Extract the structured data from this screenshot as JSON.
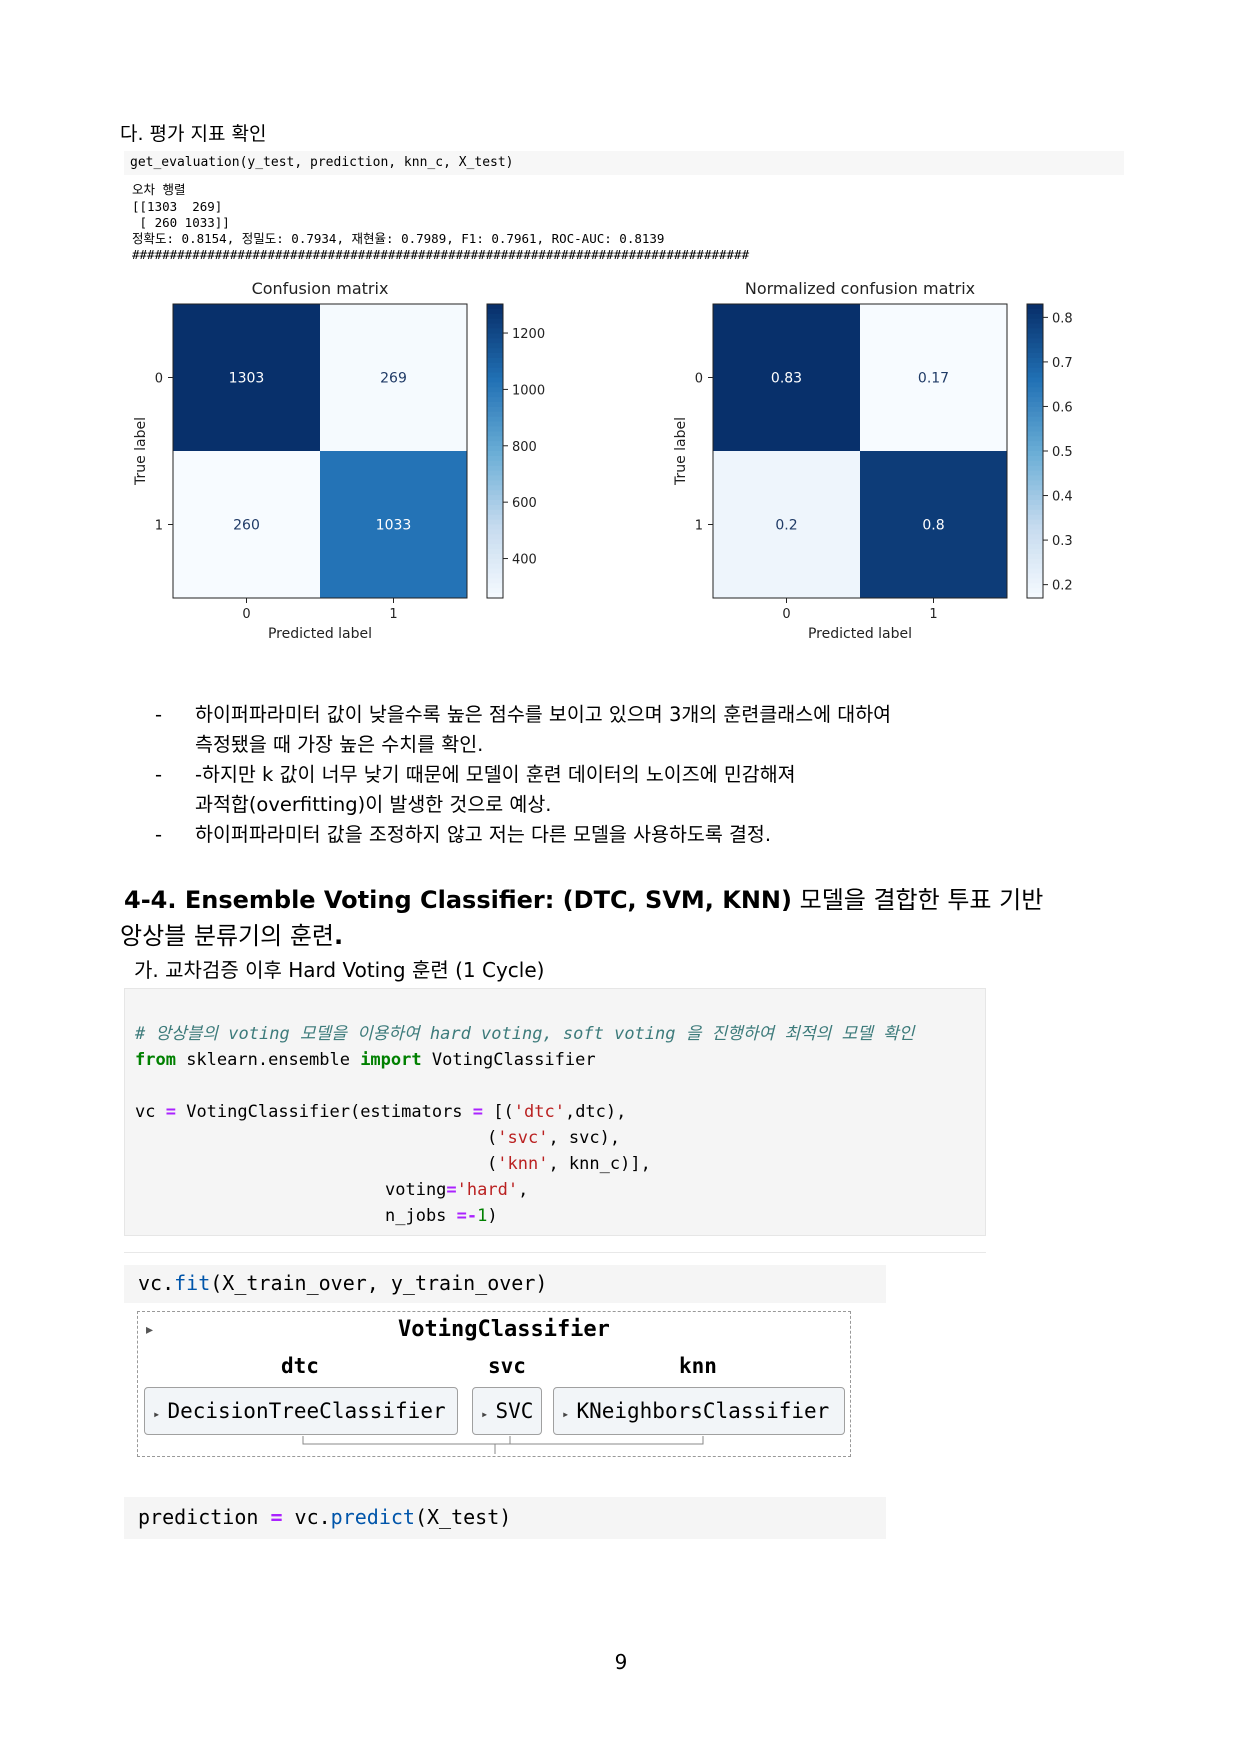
{
  "section_title": "다. 평가 지표 확인",
  "code_eval": "get_evaluation(y_test, prediction, knn_c, X_test)",
  "output": {
    "line1": "오차 행렬",
    "line2": "[[1303  269]",
    "line3": " [ 260 1033]]",
    "line4": "정확도: 0.8154, 정밀도: 0.7934, 재현율: 0.7989, F1: 0.7961, ROC-AUC: 0.8139",
    "line5": "##################################################################################"
  },
  "chart_data": [
    {
      "type": "heatmap",
      "title": "Confusion matrix",
      "xlabel": "Predicted label",
      "ylabel": "True label",
      "x_ticks": [
        "0",
        "1"
      ],
      "y_ticks": [
        "0",
        "1"
      ],
      "values": [
        [
          1303,
          269
        ],
        [
          260,
          1033
        ]
      ],
      "labels": [
        [
          "1303",
          "269"
        ],
        [
          "260",
          "1033"
        ]
      ],
      "colorbar": {
        "min": 260,
        "max": 1303,
        "ticks": [
          400,
          600,
          800,
          1000,
          1200
        ]
      },
      "colormap": [
        "#f7fbff",
        "#c6dbef",
        "#6baed6",
        "#2171b5",
        "#08306b"
      ]
    },
    {
      "type": "heatmap",
      "title": "Normalized confusion matrix",
      "xlabel": "Predicted label",
      "ylabel": "True label",
      "x_ticks": [
        "0",
        "1"
      ],
      "y_ticks": [
        "0",
        "1"
      ],
      "values": [
        [
          0.83,
          0.17
        ],
        [
          0.2,
          0.8
        ]
      ],
      "labels": [
        [
          "0.83",
          "0.17"
        ],
        [
          "0.2",
          "0.8"
        ]
      ],
      "colorbar": {
        "min": 0.17,
        "max": 0.83,
        "ticks": [
          0.2,
          0.3,
          0.4,
          0.5,
          0.6,
          0.7,
          0.8
        ]
      },
      "colormap": [
        "#f7fbff",
        "#c6dbef",
        "#6baed6",
        "#2171b5",
        "#08306b"
      ]
    }
  ],
  "bullets": [
    {
      "marker": "-",
      "lines": [
        "하이퍼파라미터 값이 낮을수록 높은 점수를 보이고 있으며 3개의 훈련클래스에 대하여",
        "측정됐을 때 가장 높은 수치를 확인."
      ]
    },
    {
      "marker": "-",
      "lines": [
        "-하지만 k 값이 너무 낮기 때문에 모델이 훈련 데이터의 노이즈에 민감해져",
        "과적합(overfitting)이 발생한 것으로 예상."
      ]
    },
    {
      "marker": "-",
      "lines": [
        "하이퍼파라미터 값을 조정하지 않고 저는 다른 모델을 사용하도록 결정."
      ]
    }
  ],
  "heading_bold": "4-4. Ensemble Voting Classifier: (DTC, SVM, KNN)",
  "heading_rest_1": " 모델을 결합한 투표 기반",
  "heading_rest_2": "앙상블 분류기의 훈련",
  "heading_period": ".",
  "subheading": "가. 교차검증 이후 Hard Voting 훈련 (1 Cycle)",
  "code_cell1": {
    "comment": "# 앙상블의 voting 모델을 이용하여 hard voting, soft voting 을 진행하여 최적의 모델 확인",
    "kw_from": "from",
    "module": " sklearn.ensemble ",
    "kw_import": "import",
    "cls": " VotingClassifier",
    "vc_line": "vc ",
    "eq": "=",
    "vc_call": " VotingClassifier(estimators ",
    "est1_open": "[(",
    "est1_str": "'dtc'",
    "est1_rest": ",dtc),",
    "est2_open": "(",
    "est2_str": "'svc'",
    "est2_rest": ", svc),",
    "est3_open": "(",
    "est3_str": "'knn'",
    "est3_rest": ", knn_c)",
    "est3_close": "],",
    "voting_key": "voting",
    "voting_str": "'hard'",
    "voting_comma": ",",
    "njobs_key": "n_jobs ",
    "njobs_eq": "=-",
    "njobs_num": "1",
    "njobs_close": ")"
  },
  "code_cell2": {
    "obj": "vc.",
    "fn": "fit",
    "args": "(X_train_over, y_train_over)"
  },
  "voting_widget": {
    "arrow": "▸",
    "title": "VotingClassifier",
    "labels": [
      "dtc",
      "svc",
      "knn"
    ],
    "estimators": [
      "DecisionTreeClassifier",
      "SVC",
      "KNeighborsClassifier"
    ]
  },
  "code_cell3": {
    "lhs": "prediction ",
    "eq": "=",
    "obj": " vc.",
    "fn": "predict",
    "args": "(X_test)"
  },
  "page_number": "9"
}
